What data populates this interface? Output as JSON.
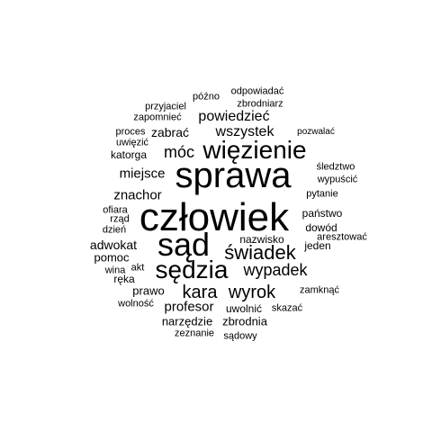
{
  "words": [
    "człowiek",
    "sprawa",
    "sąd",
    "sędzia",
    "więzienie",
    "świadek",
    "wyrok",
    "kara",
    "wypadek",
    "móc",
    "powiedzieć",
    "wszystek",
    "miejsce",
    "znachor",
    "profesor",
    "adwokat",
    "pomoc",
    "prawo",
    "zabrać",
    "katorga",
    "narzędzie",
    "zbrodnia",
    "nazwisko",
    "jeden",
    "dowód",
    "państwo",
    "pytanie",
    "wypuścić",
    "śledztwo",
    "zamknąć",
    "uwolnić",
    "skazać",
    "wolność",
    "zeznanie",
    "sądowy",
    "ręka",
    "wina",
    "akt",
    "dzień",
    "rząd",
    "ofiara",
    "aresztować",
    "pozwalać",
    "proces",
    "uwięzić",
    "zapomnieć",
    "przyjaciel",
    "późno",
    "odpowiadać",
    "zbrodniarz"
  ]
}
